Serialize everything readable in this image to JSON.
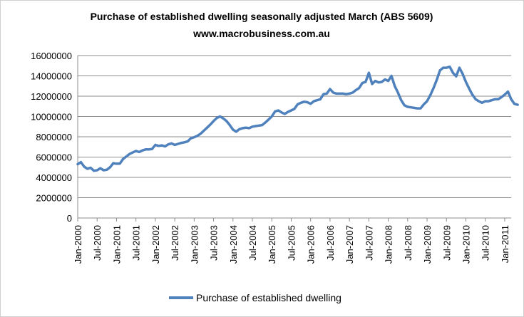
{
  "chart_data": {
    "type": "line",
    "title": "Purchase of established dwelling seasonally adjusted March (ABS 5609)",
    "subtitle": "www.macrobusiness.com.au",
    "xlabel": "",
    "ylabel": "",
    "ylim": [
      0,
      16000000
    ],
    "yticks": [
      0,
      2000000,
      4000000,
      6000000,
      8000000,
      10000000,
      12000000,
      14000000,
      16000000
    ],
    "ytick_labels": [
      "0",
      "2000000",
      "4000000",
      "6000000",
      "8000000",
      "10000000",
      "12000000",
      "14000000",
      "16000000"
    ],
    "xtick_labels": [
      "Jan-2000",
      "Jul-2000",
      "Jan-2001",
      "Jul-2001",
      "Jan-2002",
      "Jul-2002",
      "Jan-2003",
      "Jul-2003",
      "Jan-2004",
      "Jul-2004",
      "Jan-2005",
      "Jul-2005",
      "Jan-2006",
      "Jul-2006",
      "Jan-2007",
      "Jul-2007",
      "Jan-2008",
      "Jul-2008",
      "Jan-2009",
      "Jul-2009",
      "Jan-2010",
      "Jul-2010",
      "Jan-2011"
    ],
    "x_start": "Jan-2000",
    "x_end": "Mar-2011",
    "grid": true,
    "legend_position": "bottom",
    "series": [
      {
        "name": "Purchase of established dwelling",
        "color": "#4f81bd",
        "values": [
          5300000,
          5500000,
          5050000,
          4850000,
          4950000,
          4650000,
          4700000,
          4900000,
          4700000,
          4750000,
          5000000,
          5400000,
          5350000,
          5350000,
          5800000,
          6050000,
          6300000,
          6450000,
          6600000,
          6500000,
          6650000,
          6750000,
          6750000,
          6800000,
          7200000,
          7100000,
          7150000,
          7050000,
          7250000,
          7350000,
          7200000,
          7300000,
          7400000,
          7450000,
          7550000,
          7850000,
          7950000,
          8100000,
          8300000,
          8600000,
          8900000,
          9200000,
          9550000,
          9850000,
          10000000,
          9800000,
          9550000,
          9150000,
          8700000,
          8500000,
          8750000,
          8850000,
          8900000,
          8850000,
          9000000,
          9050000,
          9100000,
          9150000,
          9400000,
          9700000,
          10000000,
          10500000,
          10600000,
          10400000,
          10250000,
          10450000,
          10600000,
          10750000,
          11200000,
          11350000,
          11450000,
          11400000,
          11250000,
          11500000,
          11600000,
          11700000,
          12200000,
          12250000,
          12700000,
          12350000,
          12250000,
          12250000,
          12250000,
          12200000,
          12250000,
          12350000,
          12600000,
          12800000,
          13300000,
          13400000,
          14300000,
          13200000,
          13500000,
          13350000,
          13400000,
          13650000,
          13500000,
          14000000,
          13000000,
          12350000,
          11600000,
          11100000,
          10950000,
          10900000,
          10850000,
          10800000,
          10800000,
          11200000,
          11500000,
          12100000,
          12800000,
          13600000,
          14550000,
          14800000,
          14800000,
          14900000,
          14300000,
          13950000,
          14800000,
          14200000,
          13400000,
          12750000,
          12150000,
          11700000,
          11500000,
          11350000,
          11500000,
          11500000,
          11600000,
          11700000,
          11700000,
          11900000,
          12150000,
          12450000,
          11700000,
          11250000,
          11150000
        ]
      }
    ]
  }
}
